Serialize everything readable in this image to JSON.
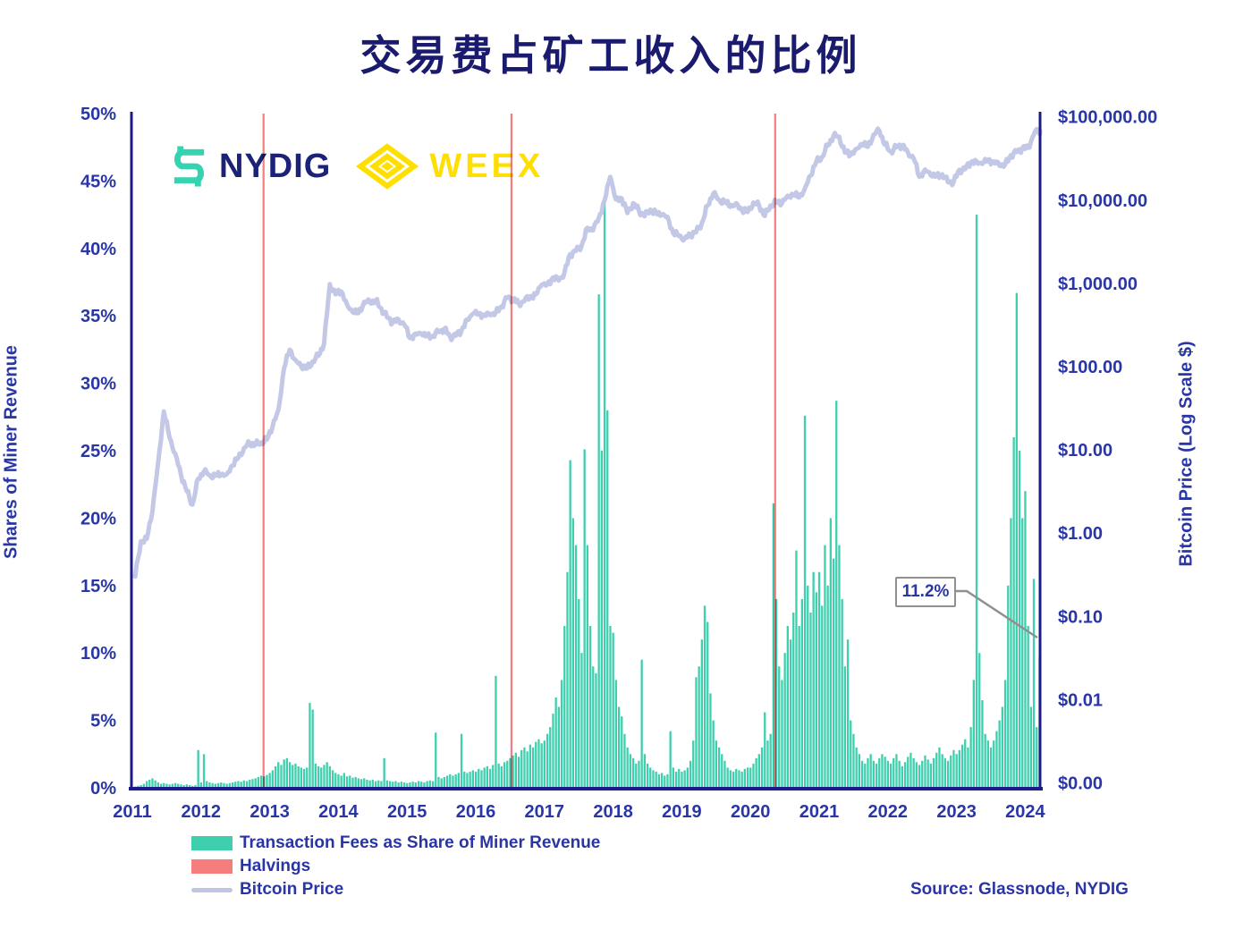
{
  "title": "交易费占矿工收入的比例",
  "logos": {
    "nydig": "NYDIG",
    "weex": "WEEX"
  },
  "colors": {
    "title_navy": "#1a1a6e",
    "label_navy": "#2936a6",
    "axis_line_navy": "#1c1b8a",
    "fee_teal": "#3ecfad",
    "halving_red": "#f57d7d",
    "price_lavender": "#c0c5e5",
    "annotation_gray": "#909090",
    "nydig_teal": "#35d3b0",
    "nydig_navy": "#1c2277",
    "weex_yellow": "#ffdf00"
  },
  "axes": {
    "left": {
      "label": "Shares of Miner Revenue",
      "ticks": [
        "50%",
        "45%",
        "40%",
        "35%",
        "30%",
        "25%",
        "20%",
        "15%",
        "10%",
        "5%",
        "0%"
      ]
    },
    "right": {
      "label": "Bitcoin Price (Log Scale $)",
      "ticks": [
        "$100,000.00",
        "$10,000.00",
        "$1,000.00",
        "$100.00",
        "$10.00",
        "$1.00",
        "$0.10",
        "$0.01",
        "$0.00"
      ]
    },
    "x": {
      "ticks": [
        "2011",
        "2012",
        "2013",
        "2014",
        "2015",
        "2016",
        "2017",
        "2018",
        "2019",
        "2020",
        "2021",
        "2022",
        "2023",
        "2024"
      ]
    }
  },
  "legend": [
    {
      "label": "Transaction Fees as Share of Miner Revenue",
      "swatch": "teal-rect"
    },
    {
      "label": "Halvings",
      "swatch": "red-rect"
    },
    {
      "label": "Bitcoin Price",
      "swatch": "lavender-line"
    }
  ],
  "annotation": {
    "label": "11.2%",
    "points_to_pct": 11.2
  },
  "source": "Source: Glassnode, NYDIG",
  "chart_data": {
    "type": "bar",
    "title": "交易费占矿工收入的比例",
    "x_range": [
      2011.0,
      2024.3
    ],
    "left_axis": {
      "label": "Shares of Miner Revenue",
      "min": 0,
      "max": 50,
      "unit": "%"
    },
    "right_axis": {
      "label": "Bitcoin Price (Log Scale $)",
      "scale": "log",
      "min": 0.001,
      "max": 100000,
      "unit": "USD"
    },
    "halvings_years": [
      2012.91,
      2016.52,
      2020.36
    ],
    "fee_share_pct": {
      "series_name": "Transaction Fees as Share of Miner Revenue",
      "start_year": 2011.0,
      "step_years": 0.0416667,
      "values": [
        0.05,
        0.1,
        0.15,
        0.2,
        0.3,
        0.5,
        0.6,
        0.7,
        0.55,
        0.4,
        0.3,
        0.35,
        0.3,
        0.25,
        0.3,
        0.35,
        0.3,
        0.25,
        0.2,
        0.25,
        0.2,
        0.15,
        0.2,
        2.8,
        0.4,
        2.5,
        0.5,
        0.4,
        0.35,
        0.3,
        0.35,
        0.4,
        0.35,
        0.3,
        0.35,
        0.4,
        0.45,
        0.5,
        0.45,
        0.55,
        0.5,
        0.6,
        0.65,
        0.7,
        0.8,
        0.9,
        0.85,
        0.95,
        1.1,
        1.3,
        1.6,
        1.9,
        1.7,
        2.1,
        2.2,
        1.9,
        1.7,
        1.8,
        1.6,
        1.5,
        1.4,
        1.5,
        6.3,
        5.8,
        1.8,
        1.6,
        1.5,
        1.7,
        1.9,
        1.6,
        1.3,
        1.1,
        1.0,
        0.9,
        1.1,
        0.85,
        0.9,
        0.75,
        0.8,
        0.7,
        0.65,
        0.7,
        0.6,
        0.55,
        0.6,
        0.5,
        0.55,
        0.5,
        2.2,
        0.55,
        0.5,
        0.45,
        0.5,
        0.4,
        0.45,
        0.4,
        0.35,
        0.4,
        0.45,
        0.4,
        0.5,
        0.45,
        0.4,
        0.5,
        0.55,
        0.5,
        4.1,
        0.8,
        0.7,
        0.8,
        0.9,
        1.0,
        0.9,
        1.0,
        1.1,
        4.0,
        1.2,
        1.1,
        1.2,
        1.3,
        1.2,
        1.4,
        1.3,
        1.5,
        1.6,
        1.4,
        1.7,
        8.3,
        1.8,
        1.6,
        1.9,
        2.0,
        2.2,
        2.4,
        2.6,
        2.3,
        2.8,
        3.0,
        2.7,
        3.2,
        3.0,
        3.4,
        3.6,
        3.3,
        3.5,
        4.0,
        4.5,
        5.5,
        6.7,
        6.0,
        8.0,
        12.0,
        16.0,
        24.3,
        20.0,
        18.0,
        14.0,
        10.0,
        25.1,
        18.0,
        12.0,
        9.0,
        8.5,
        36.6,
        25.0,
        43.5,
        28.0,
        12.0,
        11.5,
        8.0,
        6.0,
        5.3,
        4.0,
        3.0,
        2.5,
        2.2,
        1.8,
        2.0,
        9.5,
        2.5,
        1.8,
        1.5,
        1.3,
        1.2,
        1.0,
        1.1,
        0.9,
        1.0,
        4.2,
        1.5,
        1.2,
        1.4,
        1.2,
        1.3,
        1.5,
        2.0,
        3.5,
        8.2,
        9.0,
        11.0,
        13.5,
        12.3,
        7.0,
        5.0,
        3.5,
        3.0,
        2.5,
        2.0,
        1.5,
        1.3,
        1.2,
        1.4,
        1.3,
        1.2,
        1.4,
        1.5,
        1.5,
        1.8,
        2.2,
        2.5,
        3.0,
        5.6,
        3.5,
        4.0,
        21.1,
        14.0,
        9.0,
        8.0,
        10.0,
        12.0,
        11.0,
        13.0,
        17.6,
        12.0,
        14.0,
        27.6,
        15.0,
        13.0,
        16.0,
        14.5,
        16.0,
        13.5,
        18.0,
        15.0,
        20.0,
        17.0,
        28.7,
        18.0,
        14.0,
        9.0,
        11.0,
        5.0,
        4.0,
        3.0,
        2.5,
        2.0,
        1.8,
        2.2,
        2.5,
        2.0,
        1.8,
        2.2,
        2.5,
        2.3,
        2.0,
        1.8,
        2.2,
        2.5,
        2.0,
        1.6,
        1.9,
        2.3,
        2.6,
        2.2,
        1.9,
        1.7,
        2.0,
        2.4,
        2.1,
        1.8,
        2.2,
        2.6,
        3.0,
        2.5,
        2.2,
        2.0,
        2.4,
        2.8,
        2.5,
        2.8,
        3.2,
        3.6,
        3.0,
        4.5,
        8.0,
        42.5,
        10.0,
        6.5,
        4.0,
        3.5,
        3.0,
        3.5,
        4.2,
        5.0,
        6.0,
        8.0,
        15.0,
        20.0,
        26.0,
        36.7,
        25.0,
        20.0,
        22.0,
        12.0,
        6.0,
        15.5,
        4.5,
        9.7
      ]
    },
    "btc_price_usd": {
      "series_name": "Bitcoin Price",
      "start_year": 2011.042,
      "step_years": 0.0833333,
      "values": [
        0.3,
        0.8,
        0.85,
        1.8,
        7,
        29,
        14,
        9,
        5,
        3.2,
        2.2,
        4.5,
        5.5,
        5.0,
        4.9,
        5.0,
        5.1,
        6.5,
        8.0,
        10.5,
        12.0,
        11.5,
        12.3,
        13.3,
        19,
        30,
        95,
        160,
        120,
        100,
        95,
        115,
        135,
        190,
        980,
        740,
        800,
        560,
        450,
        440,
        600,
        590,
        620,
        500,
        390,
        340,
        370,
        320,
        220,
        250,
        245,
        235,
        235,
        260,
        285,
        230,
        235,
        270,
        370,
        430,
        435,
        420,
        415,
        450,
        530,
        670,
        655,
        575,
        610,
        700,
        740,
        960,
        970,
        1180,
        1080,
        1350,
        2250,
        2450,
        2850,
        4650,
        4350,
        6150,
        9900,
        19000,
        10200,
        10500,
        7000,
        9200,
        7500,
        6400,
        7700,
        7000,
        6600,
        6300,
        4000,
        3700,
        3450,
        3850,
        4100,
        5300,
        8600,
        12000,
        10100,
        9600,
        8300,
        9200,
        7500,
        7200,
        9350,
        8600,
        6450,
        8650,
        9450,
        9150,
        11300,
        11650,
        10800,
        13800,
        19700,
        29000,
        33100,
        45200,
        58800,
        57800,
        37300,
        35000,
        41500,
        47100,
        43800,
        61300,
        68500,
        46200,
        38500,
        43200,
        45500,
        37700,
        31800,
        19000,
        23300,
        20000,
        19400,
        20500,
        16500,
        16550,
        23100,
        23500,
        28500,
        29300,
        27200,
        30500,
        29200,
        26000,
        26900,
        34700,
        37700,
        42300,
        42600,
        61200,
        71300,
        64000
      ]
    },
    "annotation_value_pct": 11.2
  }
}
